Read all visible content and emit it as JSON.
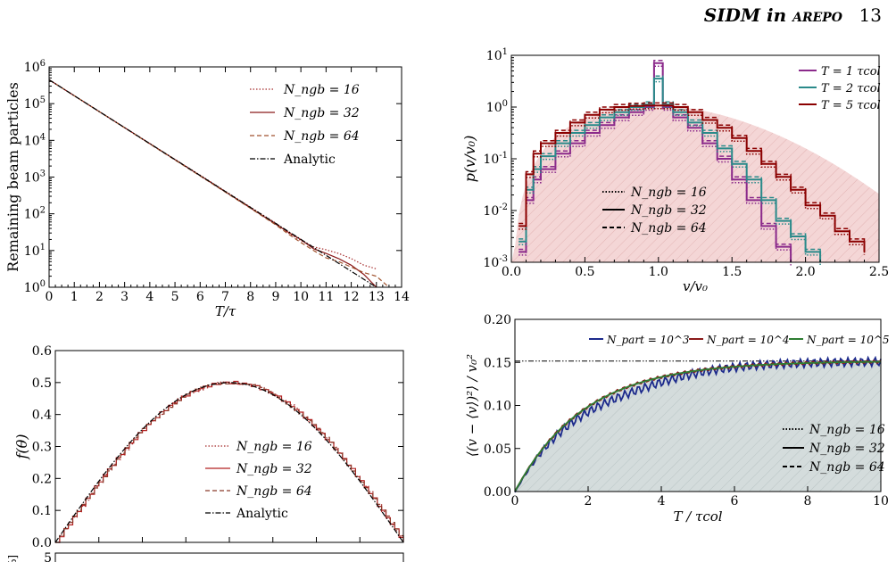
{
  "header": {
    "running_title": "SIDM in",
    "running_title_code": "arepo",
    "page_number": "13"
  },
  "chart_data": [
    {
      "id": "beam",
      "type": "line",
      "xlabel": "T/τ",
      "ylabel": "Remaining beam particles",
      "xlim": [
        0,
        14
      ],
      "ylim_log10": [
        0,
        6
      ],
      "yscale": "log",
      "x_ticks": [
        "0",
        "1",
        "2",
        "3",
        "4",
        "5",
        "6",
        "7",
        "8",
        "9",
        "10",
        "11",
        "12",
        "13",
        "14"
      ],
      "y_ticks": [
        "10^0",
        "10^1",
        "10^2",
        "10^3",
        "10^4",
        "10^5",
        "10^6"
      ],
      "legend_position": "top-right",
      "series": [
        {
          "name": "N_ngb = 16",
          "style": "dotted",
          "color": "#a52a2a",
          "x": [
            0,
            2,
            4,
            6,
            8,
            9,
            9.5,
            10,
            10.5,
            11,
            11.5,
            12,
            12.5,
            13
          ],
          "log10_y": [
            5.65,
            4.78,
            3.91,
            3.05,
            2.18,
            1.75,
            1.48,
            1.27,
            1.1,
            1.02,
            0.92,
            0.78,
            0.6,
            0.5
          ]
        },
        {
          "name": "N_ngb = 32",
          "style": "solid",
          "color": "#8b1a1a",
          "x": [
            0,
            2,
            4,
            6,
            8,
            9,
            9.5,
            10,
            10.5,
            11,
            11.5,
            12,
            12.5,
            13
          ],
          "log10_y": [
            5.65,
            4.78,
            3.91,
            3.04,
            2.16,
            1.72,
            1.5,
            1.3,
            1.05,
            0.92,
            0.78,
            0.6,
            0.35,
            0.0
          ]
        },
        {
          "name": "N_ngb = 64",
          "style": "dashed",
          "color": "#a0522d",
          "x": [
            0,
            2,
            4,
            6,
            8,
            9,
            9.5,
            10,
            10.5,
            11,
            11.5,
            12,
            12.5,
            13,
            13.5
          ],
          "log10_y": [
            5.65,
            4.78,
            3.9,
            3.03,
            2.15,
            1.7,
            1.45,
            1.22,
            1.0,
            0.8,
            0.7,
            0.55,
            0.4,
            0.3,
            0.0
          ]
        },
        {
          "name": "Analytic",
          "style": "dashdot",
          "color": "#000000",
          "x": [
            0,
            13
          ],
          "log10_y": [
            5.65,
            0.0
          ]
        }
      ]
    },
    {
      "id": "pv",
      "type": "line",
      "xlabel": "v/v₀",
      "ylabel": "p(v/v₀)",
      "xlim": [
        0.0,
        2.5
      ],
      "ylim_log10": [
        -3,
        1
      ],
      "yscale": "log",
      "x_ticks": [
        "0.0",
        "0.5",
        "1.0",
        "1.5",
        "2.0",
        "2.5"
      ],
      "y_ticks": [
        "10^-3",
        "10^-2",
        "10^-1",
        "10^0",
        "10^1"
      ],
      "legend_position": "top-right",
      "color_legend": [
        {
          "label": "T = 1 τcol",
          "color": "#8b2a8b"
        },
        {
          "label": "T = 2 τcol",
          "color": "#2a8a8a"
        },
        {
          "label": "T = 5 τcol",
          "color": "#8b0000"
        }
      ],
      "style_legend": [
        {
          "label": "N_ngb = 16",
          "style": "dotted"
        },
        {
          "label": "N_ngb = 32",
          "style": "solid"
        },
        {
          "label": "N_ngb = 64",
          "style": "dashed"
        }
      ],
      "series": [
        {
          "name": "T = 1 τcol",
          "color": "#8b2a8b",
          "x": [
            0.05,
            0.1,
            0.15,
            0.2,
            0.3,
            0.4,
            0.5,
            0.6,
            0.7,
            0.8,
            0.9,
            0.97,
            1.0,
            1.03,
            1.1,
            1.2,
            1.3,
            1.4,
            1.5,
            1.6,
            1.7,
            1.8,
            1.9
          ],
          "log10_y": [
            -2.8,
            -1.8,
            -1.4,
            -1.2,
            -0.9,
            -0.7,
            -0.5,
            -0.35,
            -0.2,
            -0.1,
            0.0,
            0.85,
            0.85,
            0.0,
            -0.2,
            -0.4,
            -0.7,
            -1.0,
            -1.4,
            -1.8,
            -2.3,
            -2.7,
            -3.0
          ]
        },
        {
          "name": "T = 2 τcol",
          "color": "#2a8a8a",
          "x": [
            0.05,
            0.1,
            0.15,
            0.2,
            0.3,
            0.4,
            0.5,
            0.6,
            0.7,
            0.8,
            0.9,
            0.97,
            1.0,
            1.03,
            1.1,
            1.2,
            1.3,
            1.4,
            1.5,
            1.6,
            1.7,
            1.8,
            1.9,
            2.0,
            2.1
          ],
          "log10_y": [
            -2.6,
            -1.6,
            -1.2,
            -0.95,
            -0.7,
            -0.5,
            -0.35,
            -0.2,
            -0.1,
            0.0,
            0.05,
            0.55,
            0.55,
            0.05,
            -0.1,
            -0.3,
            -0.5,
            -0.8,
            -1.1,
            -1.4,
            -1.8,
            -2.2,
            -2.5,
            -2.8,
            -3.0
          ]
        },
        {
          "name": "T = 5 τcol",
          "color": "#8b0000",
          "x": [
            0.05,
            0.1,
            0.15,
            0.2,
            0.3,
            0.4,
            0.5,
            0.6,
            0.7,
            0.8,
            0.9,
            1.0,
            1.1,
            1.2,
            1.3,
            1.4,
            1.5,
            1.6,
            1.7,
            1.8,
            1.9,
            2.0,
            2.1,
            2.2,
            2.3,
            2.4
          ],
          "log10_y": [
            -2.3,
            -1.3,
            -0.9,
            -0.7,
            -0.5,
            -0.3,
            -0.15,
            -0.05,
            0.0,
            0.02,
            0.03,
            0.03,
            0.0,
            -0.1,
            -0.25,
            -0.4,
            -0.6,
            -0.85,
            -1.1,
            -1.35,
            -1.6,
            -1.9,
            -2.1,
            -2.4,
            -2.6,
            -2.8
          ]
        }
      ]
    },
    {
      "id": "ftheta",
      "type": "line",
      "xlabel": "",
      "ylabel": "f(θ)",
      "ylim": [
        0.0,
        0.6
      ],
      "y_ticks": [
        "0.0",
        "0.1",
        "0.2",
        "0.3",
        "0.4",
        "0.5",
        "0.6"
      ],
      "legend_position": "right",
      "series": [
        {
          "name": "N_ngb = 16",
          "style": "dotted",
          "color": "#a52a2a",
          "shape": "0.5 sin(θ)"
        },
        {
          "name": "N_ngb = 32",
          "style": "solid",
          "color": "#b22222",
          "shape": "0.5 sin(θ)"
        },
        {
          "name": "N_ngb = 64",
          "style": "dashed",
          "color": "#8b3a2a",
          "shape": "0.5 sin(θ)"
        },
        {
          "name": "Analytic",
          "style": "dashdot",
          "color": "#000000",
          "shape": "0.5 sin(θ)"
        }
      ],
      "next_panel_label_fragment": "%]",
      "next_panel_tick": "5"
    },
    {
      "id": "dispersion",
      "type": "line",
      "xlabel": "T / τcol",
      "ylabel": "⟨(v − ⟨v⟩)²⟩ / v₀²",
      "xlim": [
        0,
        10
      ],
      "ylim": [
        0.0,
        0.2
      ],
      "x_ticks": [
        "0",
        "2",
        "4",
        "6",
        "8",
        "10"
      ],
      "y_ticks": [
        "0.00",
        "0.05",
        "0.10",
        "0.15",
        "0.20"
      ],
      "asymptote": 0.1515,
      "color_legend": [
        {
          "label": "N_part = 10^3",
          "color": "#1c2a8c"
        },
        {
          "label": "N_part = 10^4",
          "color": "#8b1a1a"
        },
        {
          "label": "N_part = 10^5",
          "color": "#2e7d32"
        }
      ],
      "style_legend": [
        {
          "label": "N_ngb = 16",
          "style": "dotted"
        },
        {
          "label": "N_ngb = 32",
          "style": "solid"
        },
        {
          "label": "N_ngb = 64",
          "style": "dashed"
        }
      ],
      "series": [
        {
          "name": "N_part = 10^3",
          "color": "#1c2a8c",
          "noise": 0.005
        },
        {
          "name": "N_part = 10^4",
          "color": "#8b1a1a",
          "noise": 0.0015
        },
        {
          "name": "N_part = 10^5",
          "color": "#2e7d32",
          "noise": 0.0
        }
      ]
    }
  ]
}
